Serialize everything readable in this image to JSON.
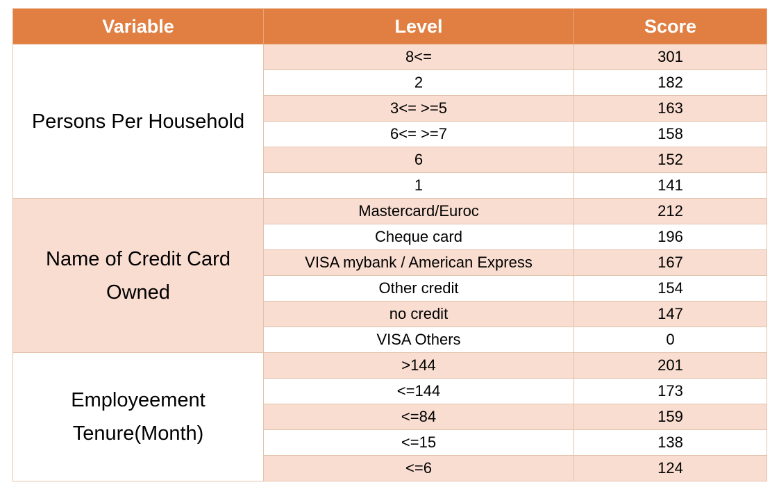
{
  "headers": {
    "variable": "Variable",
    "level": "Level",
    "score": "Score"
  },
  "groups": [
    {
      "variable": "Persons Per Household",
      "rows": [
        {
          "level": "8<=",
          "score": "301"
        },
        {
          "level": "2",
          "score": "182"
        },
        {
          "level": "3<= >=5",
          "score": "163"
        },
        {
          "level": "6<= >=7",
          "score": "158"
        },
        {
          "level": "6",
          "score": "152"
        },
        {
          "level": "1",
          "score": "141"
        }
      ]
    },
    {
      "variable": "Name of Credit Card Owned",
      "rows": [
        {
          "level": "Mastercard/Euroc",
          "score": "212"
        },
        {
          "level": "Cheque card",
          "score": "196"
        },
        {
          "level": "VISA mybank / American Express",
          "score": "167"
        },
        {
          "level": "Other credit",
          "score": "154"
        },
        {
          "level": "no credit",
          "score": "147"
        },
        {
          "level": "VISA Others",
          "score": "0"
        }
      ]
    },
    {
      "variable": "Employeement Tenure(Month)",
      "rows": [
        {
          "level": ">144",
          "score": "201"
        },
        {
          "level": "<=144",
          "score": "173"
        },
        {
          "level": "<=84",
          "score": "159"
        },
        {
          "level": "<=15",
          "score": "138"
        },
        {
          "level": "<=6",
          "score": "124"
        }
      ]
    }
  ],
  "colors": {
    "header": "#e07f41",
    "shaded": "#f8ddd0",
    "border": "#e3c2ac"
  }
}
